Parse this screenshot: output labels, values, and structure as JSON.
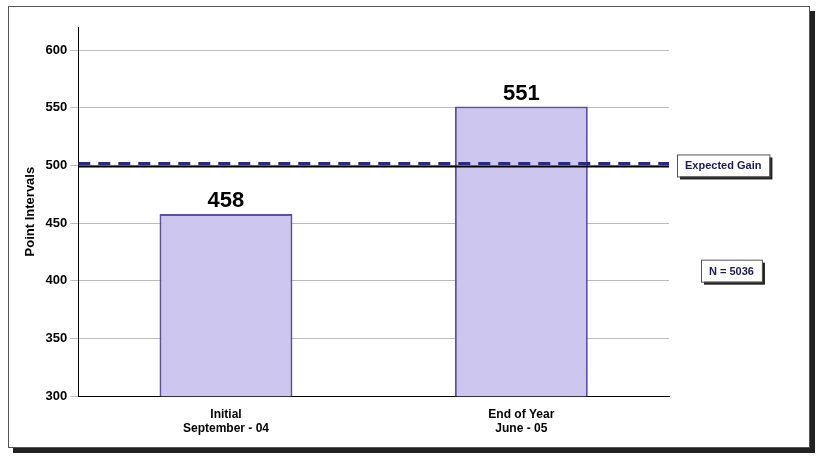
{
  "chart_data": {
    "type": "bar",
    "y_label": "Point Intervals",
    "categories": [
      [
        "Initial",
        "September - 04"
      ],
      [
        "End of Year",
        "June - 05"
      ]
    ],
    "values": [
      458,
      551
    ],
    "color": "#cdc6ef",
    "data_labels": true,
    "ylim": [
      300,
      620
    ],
    "yticks": [
      300,
      350,
      400,
      450,
      500,
      550,
      600
    ],
    "grid": true,
    "annotations": [
      {
        "text": "Expected Gain",
        "y": 500
      },
      {
        "text": "N = 5036"
      }
    ]
  }
}
